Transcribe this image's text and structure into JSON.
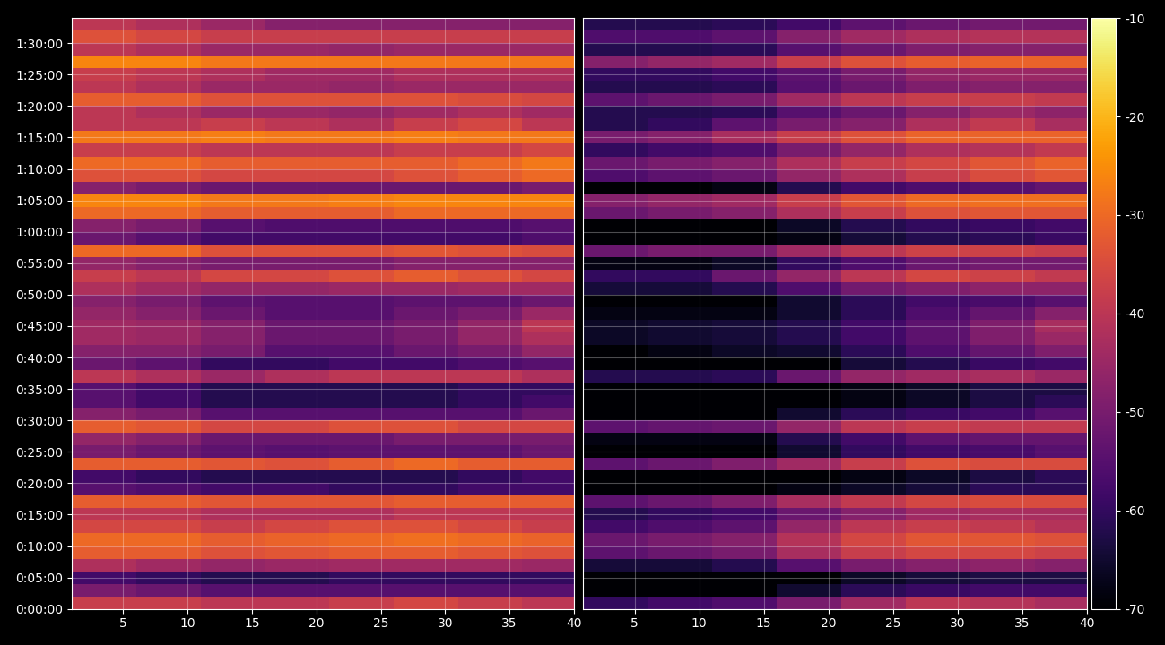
{
  "chart_data": [
    {
      "type": "heatmap",
      "color": "inferno",
      "grid": true,
      "tick_labels": true,
      "xlim": [
        1,
        40
      ],
      "xticks": [
        5,
        10,
        15,
        20,
        25,
        30,
        35,
        40
      ],
      "ylim": [
        0,
        5640
      ],
      "yticks": [
        {
          "value": 0,
          "label": "0:00:00"
        },
        {
          "value": 300,
          "label": "0:05:00"
        },
        {
          "value": 600,
          "label": "0:10:00"
        },
        {
          "value": 900,
          "label": "0:15:00"
        },
        {
          "value": 1200,
          "label": "0:20:00"
        },
        {
          "value": 1500,
          "label": "0:25:00"
        },
        {
          "value": 1800,
          "label": "0:30:00"
        },
        {
          "value": 2100,
          "label": "0:35:00"
        },
        {
          "value": 2400,
          "label": "0:40:00"
        },
        {
          "value": 2700,
          "label": "0:45:00"
        },
        {
          "value": 3000,
          "label": "0:50:00"
        },
        {
          "value": 3300,
          "label": "0:55:00"
        },
        {
          "value": 3600,
          "label": "1:00:00"
        },
        {
          "value": 3900,
          "label": "1:05:00"
        },
        {
          "value": 4200,
          "label": "1:10:00"
        },
        {
          "value": 4500,
          "label": "1:15:00"
        },
        {
          "value": 4800,
          "label": "1:20:00"
        },
        {
          "value": 5100,
          "label": "1:25:00"
        },
        {
          "value": 5400,
          "label": "1:30:00"
        }
      ],
      "x_edges": [
        1,
        6,
        11,
        16,
        21,
        26,
        31,
        36,
        40
      ],
      "y_edges": [
        0,
        120,
        240,
        360,
        480,
        600,
        720,
        840,
        960,
        1080,
        1200,
        1320,
        1440,
        1560,
        1680,
        1800,
        1920,
        2040,
        2160,
        2280,
        2400,
        2520,
        2640,
        2760,
        2880,
        3000,
        3120,
        3240,
        3360,
        3480,
        3600,
        3720,
        3840,
        3960,
        4080,
        4200,
        4320,
        4440,
        4560,
        4680,
        4800,
        4920,
        5040,
        5160,
        5280,
        5400,
        5520,
        5640
      ],
      "cells": [
        [
          -38,
          -38,
          -40,
          -40,
          -38,
          -36,
          -38,
          -40
        ],
        [
          -50,
          -52,
          -55,
          -55,
          -55,
          -55,
          -55,
          -55
        ],
        [
          -58,
          -60,
          -62,
          -62,
          -60,
          -60,
          -60,
          -60
        ],
        [
          -42,
          -44,
          -46,
          -45,
          -44,
          -44,
          -44,
          -45
        ],
        [
          -32,
          -32,
          -34,
          -33,
          -32,
          -32,
          -33,
          -34
        ],
        [
          -30,
          -30,
          -32,
          -31,
          -30,
          -29,
          -30,
          -31
        ],
        [
          -36,
          -36,
          -38,
          -36,
          -34,
          -34,
          -36,
          -38
        ],
        [
          -40,
          -40,
          -42,
          -42,
          -42,
          -40,
          -40,
          -40
        ],
        [
          -32,
          -32,
          -33,
          -33,
          -33,
          -32,
          -32,
          -32
        ],
        [
          -55,
          -56,
          -58,
          -58,
          -60,
          -60,
          -58,
          -58
        ],
        [
          -58,
          -60,
          -62,
          -62,
          -62,
          -62,
          -60,
          -58
        ],
        [
          -32,
          -32,
          -33,
          -34,
          -32,
          -30,
          -32,
          -32
        ],
        [
          -50,
          -52,
          -54,
          -55,
          -54,
          -54,
          -54,
          -52
        ],
        [
          -46,
          -48,
          -52,
          -52,
          -52,
          -50,
          -50,
          -50
        ],
        [
          -32,
          -33,
          -36,
          -36,
          -34,
          -34,
          -36,
          -36
        ],
        [
          -48,
          -50,
          -55,
          -55,
          -55,
          -55,
          -55,
          -52
        ],
        [
          -55,
          -58,
          -62,
          -62,
          -62,
          -62,
          -60,
          -58
        ],
        [
          -55,
          -58,
          -62,
          -62,
          -62,
          -62,
          -60,
          -60
        ],
        [
          -40,
          -42,
          -45,
          -42,
          -40,
          -40,
          -40,
          -42
        ],
        [
          -52,
          -54,
          -60,
          -60,
          -58,
          -58,
          -56,
          -55
        ],
        [
          -48,
          -48,
          -50,
          -55,
          -55,
          -52,
          -50,
          -46
        ],
        [
          -44,
          -45,
          -48,
          -52,
          -52,
          -50,
          -46,
          -42
        ],
        [
          -44,
          -45,
          -48,
          -52,
          -52,
          -50,
          -46,
          -40
        ],
        [
          -46,
          -48,
          -52,
          -55,
          -55,
          -52,
          -50,
          -45
        ],
        [
          -48,
          -50,
          -54,
          -55,
          -55,
          -54,
          -54,
          -52
        ],
        [
          -42,
          -44,
          -46,
          -46,
          -45,
          -45,
          -44,
          -44
        ],
        [
          -38,
          -40,
          -36,
          -36,
          -34,
          -32,
          -34,
          -36
        ],
        [
          -46,
          -48,
          -50,
          -50,
          -50,
          -48,
          -48,
          -48
        ],
        [
          -30,
          -30,
          -34,
          -34,
          -34,
          -33,
          -34,
          -35
        ],
        [
          -52,
          -55,
          -58,
          -58,
          -58,
          -58,
          -58,
          -56
        ],
        [
          -48,
          -50,
          -55,
          -56,
          -56,
          -56,
          -56,
          -55
        ],
        [
          -30,
          -30,
          -32,
          -32,
          -32,
          -30,
          -30,
          -30
        ],
        [
          -26,
          -26,
          -28,
          -28,
          -27,
          -26,
          -26,
          -26
        ],
        [
          -48,
          -50,
          -52,
          -52,
          -52,
          -52,
          -52,
          -50
        ],
        [
          -34,
          -34,
          -36,
          -36,
          -36,
          -34,
          -32,
          -30
        ],
        [
          -30,
          -30,
          -32,
          -32,
          -32,
          -32,
          -30,
          -28
        ],
        [
          -38,
          -38,
          -40,
          -40,
          -40,
          -38,
          -38,
          -36
        ],
        [
          -28,
          -28,
          -27,
          -28,
          -28,
          -27,
          -28,
          -28
        ],
        [
          -40,
          -40,
          -38,
          -40,
          -42,
          -38,
          -36,
          -40
        ],
        [
          -40,
          -42,
          -45,
          -45,
          -46,
          -44,
          -42,
          -44
        ],
        [
          -32,
          -32,
          -34,
          -34,
          -34,
          -34,
          -35,
          -36
        ],
        [
          -40,
          -42,
          -45,
          -45,
          -46,
          -45,
          -45,
          -45
        ],
        [
          -38,
          -40,
          -42,
          -44,
          -44,
          -42,
          -42,
          -42
        ],
        [
          -26,
          -26,
          -28,
          -28,
          -28,
          -28,
          -28,
          -28
        ],
        [
          -40,
          -42,
          -45,
          -45,
          -46,
          -45,
          -45,
          -45
        ],
        [
          -34,
          -36,
          -38,
          -38,
          -38,
          -38,
          -38,
          -38
        ],
        [
          -40,
          -42,
          -45,
          -48,
          -48,
          -48,
          -48,
          -48
        ]
      ]
    },
    {
      "type": "heatmap",
      "color": "inferno",
      "grid": true,
      "tick_labels": "x",
      "xlim": [
        1,
        40
      ],
      "xticks": [
        5,
        10,
        15,
        20,
        25,
        30,
        35,
        40
      ],
      "ylim": [
        0,
        5640
      ],
      "yticks": [
        0,
        300,
        600,
        900,
        1200,
        1500,
        1800,
        2100,
        2400,
        2700,
        3000,
        3300,
        3600,
        3900,
        4200,
        4500,
        4800,
        5100,
        5400
      ],
      "x_edges": [
        1,
        6,
        11,
        16,
        21,
        26,
        31,
        36,
        40
      ],
      "y_edges": [
        0,
        120,
        240,
        360,
        480,
        600,
        720,
        840,
        960,
        1080,
        1200,
        1320,
        1440,
        1560,
        1680,
        1800,
        1920,
        2040,
        2160,
        2280,
        2400,
        2520,
        2640,
        2760,
        2880,
        3000,
        3120,
        3240,
        3360,
        3480,
        3600,
        3720,
        3840,
        3960,
        4080,
        4200,
        4320,
        4440,
        4560,
        4680,
        4800,
        4920,
        5040,
        5160,
        5280,
        5400,
        5520,
        5640
      ],
      "cells": [
        [
          -60,
          -58,
          -56,
          -50,
          -44,
          -40,
          -41,
          -43
        ],
        [
          -70,
          -70,
          -70,
          -65,
          -61,
          -59,
          -58,
          -58
        ],
        [
          -70,
          -70,
          -70,
          -70,
          -66,
          -64,
          -63,
          -63
        ],
        [
          -64,
          -64,
          -62,
          -55,
          -50,
          -48,
          -47,
          -48
        ],
        [
          -54,
          -52,
          -50,
          -43,
          -38,
          -36,
          -36,
          -37
        ],
        [
          -52,
          -50,
          -48,
          -41,
          -36,
          -33,
          -33,
          -34
        ],
        [
          -58,
          -56,
          -54,
          -46,
          -40,
          -38,
          -39,
          -41
        ],
        [
          -62,
          -60,
          -58,
          -52,
          -48,
          -44,
          -43,
          -43
        ],
        [
          -54,
          -52,
          -49,
          -43,
          -39,
          -36,
          -35,
          -35
        ],
        [
          -70,
          -70,
          -70,
          -68,
          -66,
          -64,
          -61,
          -61
        ],
        [
          -70,
          -70,
          -70,
          -70,
          -68,
          -66,
          -63,
          -61
        ],
        [
          -54,
          -52,
          -49,
          -44,
          -38,
          -34,
          -35,
          -35
        ],
        [
          -70,
          -70,
          -70,
          -65,
          -60,
          -58,
          -57,
          -55
        ],
        [
          -68,
          -68,
          -68,
          -62,
          -58,
          -54,
          -53,
          -53
        ],
        [
          -54,
          -53,
          -52,
          -46,
          -40,
          -38,
          -39,
          -39
        ],
        [
          -70,
          -70,
          -70,
          -65,
          -61,
          -59,
          -58,
          -55
        ],
        [
          -70,
          -70,
          -70,
          -70,
          -68,
          -66,
          -63,
          -61
        ],
        [
          -70,
          -70,
          -70,
          -70,
          -68,
          -66,
          -63,
          -63
        ],
        [
          -62,
          -62,
          -61,
          -52,
          -46,
          -44,
          -43,
          -45
        ],
        [
          -70,
          -70,
          -70,
          -70,
          -64,
          -62,
          -59,
          -58
        ],
        [
          -70,
          -68,
          -66,
          -65,
          -61,
          -56,
          -53,
          -49
        ],
        [
          -66,
          -65,
          -64,
          -62,
          -58,
          -54,
          -49,
          -45
        ],
        [
          -66,
          -65,
          -64,
          -62,
          -58,
          -54,
          -49,
          -43
        ],
        [
          -68,
          -68,
          -68,
          -65,
          -61,
          -56,
          -53,
          -48
        ],
        [
          -70,
          -70,
          -70,
          -65,
          -61,
          -58,
          -57,
          -55
        ],
        [
          -64,
          -64,
          -62,
          -56,
          -51,
          -49,
          -47,
          -47
        ],
        [
          -60,
          -60,
          -52,
          -46,
          -40,
          -36,
          -37,
          -39
        ],
        [
          -68,
          -68,
          -66,
          -60,
          -56,
          -52,
          -51,
          -51
        ],
        [
          -52,
          -50,
          -50,
          -44,
          -40,
          -37,
          -37,
          -38
        ],
        [
          -70,
          -70,
          -70,
          -68,
          -64,
          -62,
          -61,
          -59
        ],
        [
          -70,
          -70,
          -70,
          -66,
          -62,
          -60,
          -59,
          -58
        ],
        [
          -52,
          -50,
          -48,
          -42,
          -38,
          -34,
          -33,
          -33
        ],
        [
          -48,
          -46,
          -44,
          -38,
          -33,
          -30,
          -29,
          -29
        ],
        [
          -70,
          -70,
          -68,
          -62,
          -58,
          -56,
          -55,
          -53
        ],
        [
          -56,
          -54,
          -52,
          -46,
          -42,
          -38,
          -35,
          -33
        ],
        [
          -52,
          -50,
          -48,
          -42,
          -38,
          -36,
          -33,
          -31
        ],
        [
          -60,
          -58,
          -56,
          -50,
          -46,
          -42,
          -41,
          -39
        ],
        [
          -50,
          -48,
          -43,
          -38,
          -34,
          -31,
          -31,
          -31
        ],
        [
          -62,
          -60,
          -54,
          -50,
          -48,
          -42,
          -39,
          -43
        ],
        [
          -62,
          -62,
          -61,
          -55,
          -52,
          -48,
          -45,
          -47
        ],
        [
          -54,
          -52,
          -50,
          -44,
          -40,
          -38,
          -38,
          -39
        ],
        [
          -62,
          -62,
          -61,
          -55,
          -52,
          -49,
          -48,
          -48
        ],
        [
          -60,
          -60,
          -58,
          -54,
          -50,
          -46,
          -45,
          -45
        ],
        [
          -48,
          -46,
          -44,
          -38,
          -34,
          -32,
          -31,
          -31
        ],
        [
          -62,
          -62,
          -61,
          -55,
          -52,
          -49,
          -48,
          -48
        ],
        [
          -56,
          -56,
          -54,
          -48,
          -44,
          -42,
          -41,
          -41
        ],
        [
          -62,
          -62,
          -61,
          -58,
          -54,
          -52,
          -51,
          -51
        ]
      ],
      "colorbar_range": [
        -70,
        -10
      ],
      "colorbar_ticks": [
        -70,
        -60,
        -50,
        -40,
        -30,
        -20,
        -10
      ]
    }
  ]
}
